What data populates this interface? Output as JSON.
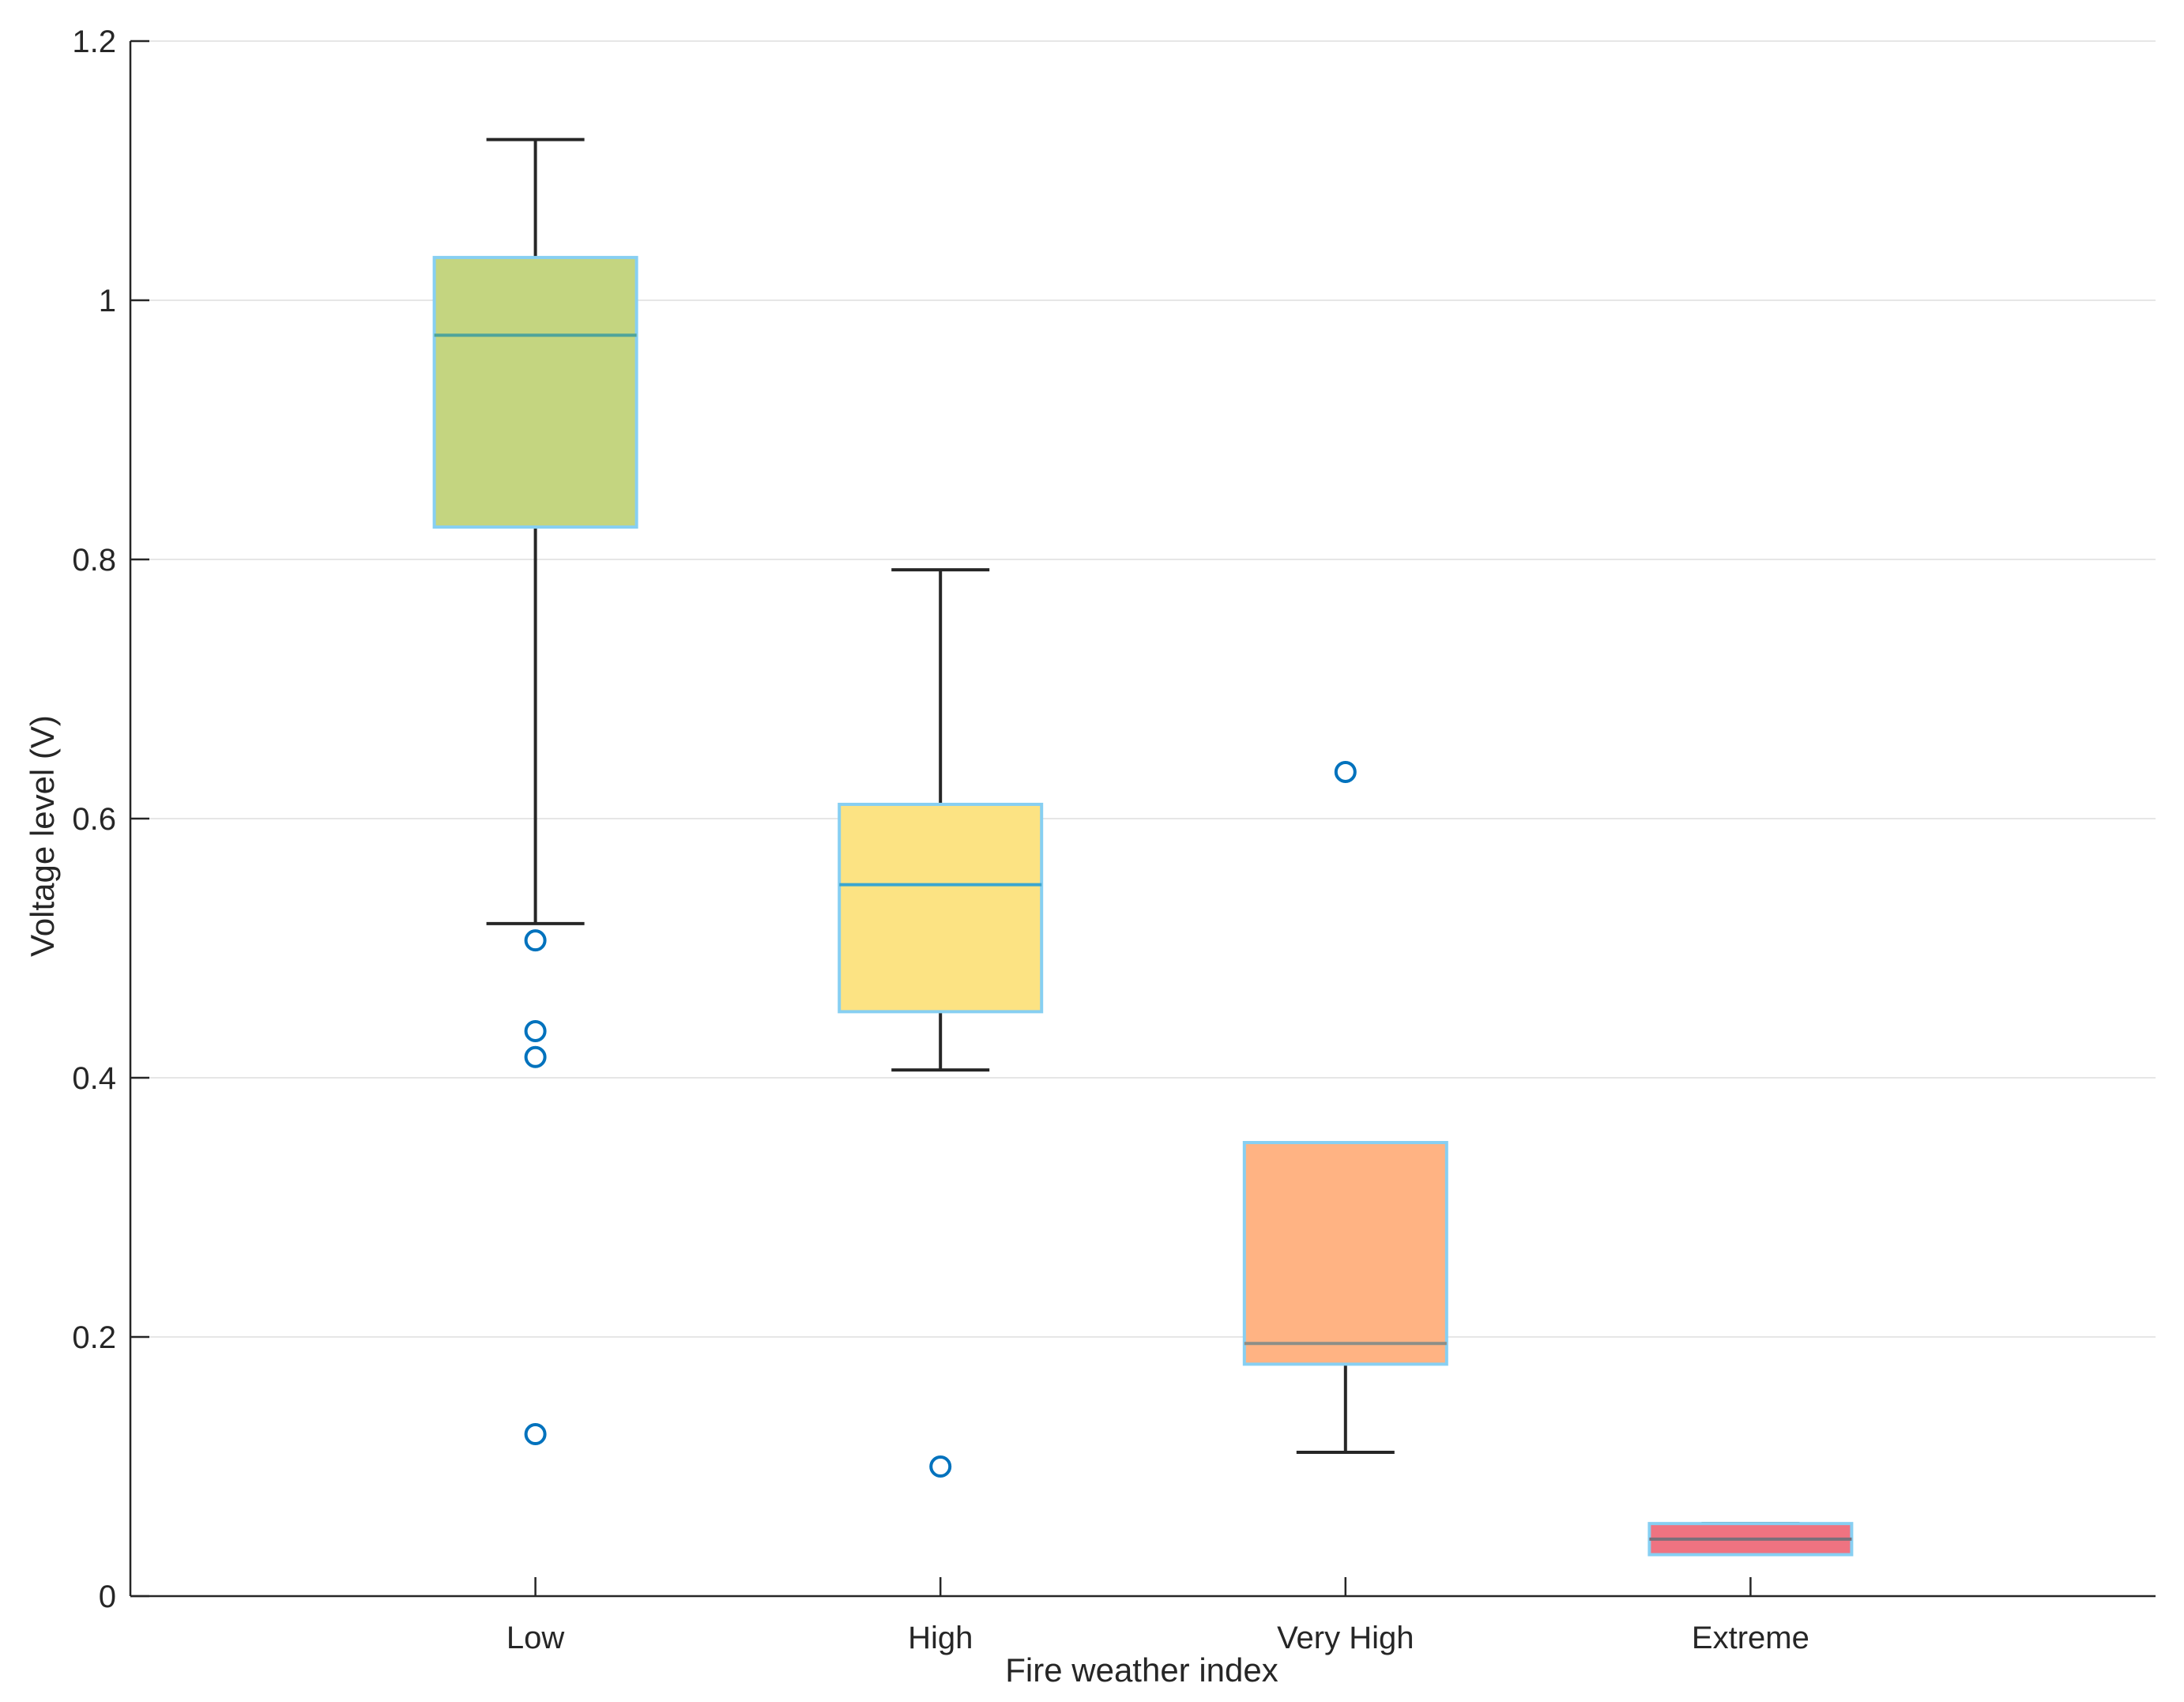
{
  "chart_data": {
    "type": "boxplot",
    "title": "",
    "xlabel": "Fire weather index",
    "ylabel": "Voltage level (V)",
    "ylim": [
      0,
      1.2
    ],
    "yticks": [
      0,
      0.2,
      0.4,
      0.6,
      0.8,
      1,
      1.2
    ],
    "ytick_labels": [
      "0",
      "0.2",
      "0.4",
      "0.6",
      "0.8",
      "1",
      "1.2"
    ],
    "grid": true,
    "categories": [
      "Low",
      "High",
      "Very High",
      "Extreme"
    ],
    "boxes": [
      {
        "name": "Low",
        "q1": 0.825,
        "median": 0.973,
        "q3": 1.033,
        "whisker_low": 0.519,
        "whisker_high": 1.124,
        "outliers": [
          0.506,
          0.436,
          0.416,
          0.125
        ],
        "fill": "#C4D580",
        "median_color": "#4FA49A"
      },
      {
        "name": "High",
        "q1": 0.451,
        "median": 0.549,
        "q3": 0.611,
        "whisker_low": 0.406,
        "whisker_high": 0.792,
        "outliers": [
          0.1
        ],
        "fill": "#FCE383",
        "median_color": "#3AA6D0"
      },
      {
        "name": "Very High",
        "q1": 0.179,
        "median": 0.195,
        "q3": 0.35,
        "whisker_low": 0.111,
        "whisker_high": 0.35,
        "outliers": [
          0.636
        ],
        "fill": "#FFB383",
        "median_color": "#8C8E88"
      },
      {
        "name": "Extreme",
        "q1": 0.032,
        "median": 0.044,
        "q3": 0.056,
        "whisker_low": 0.032,
        "whisker_high": 0.056,
        "outliers": [],
        "fill": "#EF7381",
        "median_color": "#7B6F7A"
      }
    ],
    "box_edge_color": "#87CFF2",
    "whisker_color": "#262626",
    "outlier_color": "#0072BD"
  }
}
